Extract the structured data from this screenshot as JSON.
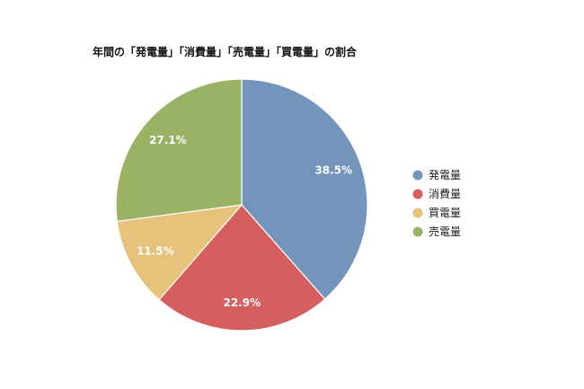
{
  "chart_data": {
    "type": "pie",
    "title": "年間の「発電量」「消費量」「売電量」「買電量」の割合",
    "slices": [
      {
        "label": "発電量",
        "value": 38.5,
        "value_label": "38.5%",
        "color": "#7395bb"
      },
      {
        "label": "消費量",
        "value": 22.9,
        "value_label": "22.9%",
        "color": "#d55f5f"
      },
      {
        "label": "買電量",
        "value": 11.5,
        "value_label": "11.5%",
        "color": "#e6c27a"
      },
      {
        "label": "売電量",
        "value": 27.1,
        "value_label": "27.1%",
        "color": "#9ab264"
      }
    ],
    "legend_position": "right",
    "start_angle": "top, clockwise"
  }
}
